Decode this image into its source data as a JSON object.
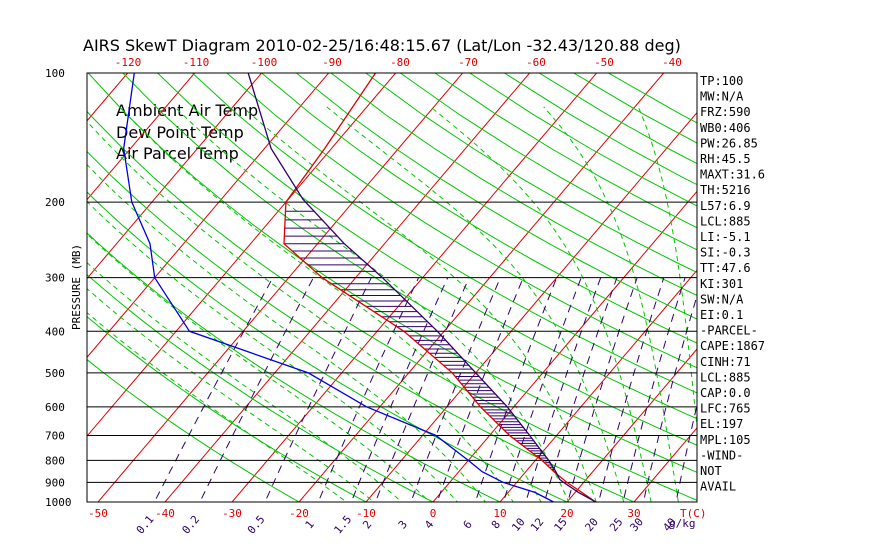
{
  "title": "AIRS SkewT Diagram 2010-02-25/16:48:15.67 (Lat/Lon -32.43/120.88 deg)",
  "chart_data": {
    "type": "line",
    "ylabel": "PRESSURE (MB)",
    "temp_axis_label": "T(C)",
    "mixing_axis_label": "g/kg",
    "pressure_ticks": [
      100,
      200,
      300,
      400,
      500,
      600,
      700,
      800,
      900,
      1000
    ],
    "bottom_temp_ticks": [
      -50,
      -40,
      -30,
      -20,
      -10,
      0,
      10,
      20,
      30
    ],
    "top_temp_ticks": [
      -120,
      -110,
      -100,
      -90,
      -80,
      -70,
      -60,
      -50,
      -40
    ],
    "mixing_ratio_ticks": [
      "0.1",
      "0.2",
      "0.5",
      "1",
      "1.5",
      "2",
      "3",
      "4",
      "6",
      "8",
      "10",
      "12",
      "15",
      "20",
      "25",
      "30",
      "40"
    ],
    "series": [
      {
        "name": "Ambient Air Temp",
        "color": "#e00000",
        "points": [
          [
            1000,
            24.3
          ],
          [
            950,
            21.0
          ],
          [
            900,
            17.5
          ],
          [
            850,
            14.2
          ],
          [
            800,
            11.0
          ],
          [
            700,
            3.0
          ],
          [
            600,
            -5.0
          ],
          [
            500,
            -13.5
          ],
          [
            400,
            -26.0
          ],
          [
            300,
            -45.0
          ],
          [
            250,
            -55.0
          ],
          [
            200,
            -60.0
          ],
          [
            150,
            -61.0
          ],
          [
            100,
            -63.0
          ]
        ]
      },
      {
        "name": "Dew Point Temp",
        "color": "#0000e0",
        "points": [
          [
            1000,
            18.0
          ],
          [
            950,
            14.0
          ],
          [
            900,
            8.0
          ],
          [
            850,
            3.5
          ],
          [
            800,
            0.0
          ],
          [
            700,
            -8.0
          ],
          [
            600,
            -22.0
          ],
          [
            500,
            -35.0
          ],
          [
            400,
            -58.0
          ],
          [
            300,
            -70.0
          ],
          [
            250,
            -75.0
          ],
          [
            200,
            -83.0
          ],
          [
            150,
            -91.0
          ],
          [
            100,
            -99.0
          ]
        ]
      },
      {
        "name": "Air Parcel Temp",
        "color": "#30006a",
        "points": [
          [
            1000,
            24.3
          ],
          [
            950,
            20.5
          ],
          [
            900,
            17.0
          ],
          [
            885,
            16.0
          ],
          [
            850,
            14.5
          ],
          [
            800,
            12.0
          ],
          [
            700,
            6.0
          ],
          [
            600,
            -1.0
          ],
          [
            500,
            -10.0
          ],
          [
            400,
            -21.0
          ],
          [
            300,
            -36.0
          ],
          [
            250,
            -46.0
          ],
          [
            197,
            -57.8
          ],
          [
            150,
            -69.0
          ],
          [
            100,
            -82.0
          ]
        ]
      }
    ],
    "indices": [
      "TP:100",
      "MW:N/A",
      "FRZ:590",
      "WB0:406",
      "PW:26.85",
      "RH:45.5",
      "MAXT:31.6",
      "TH:5216",
      "L57:6.9",
      "LCL:885",
      "LI:-5.1",
      "SI:-0.3",
      "TT:47.6",
      "KI:301",
      "SW:N/A",
      "EI:0.1",
      "-PARCEL-",
      "CAPE:1867",
      "CINH:71",
      "LCL:885",
      "CAP:0.0",
      "LFC:765",
      "EL:197",
      "MPL:105",
      "-WIND-",
      "NOT",
      "AVAIL"
    ]
  },
  "colors": {
    "isotherm": "#e00000",
    "dry_adiabat": "#00c800",
    "moist_adiabat": "#00c800",
    "mixing_ratio": "#30006a",
    "cape_hatch": "#30006a",
    "axis": "#000000"
  }
}
